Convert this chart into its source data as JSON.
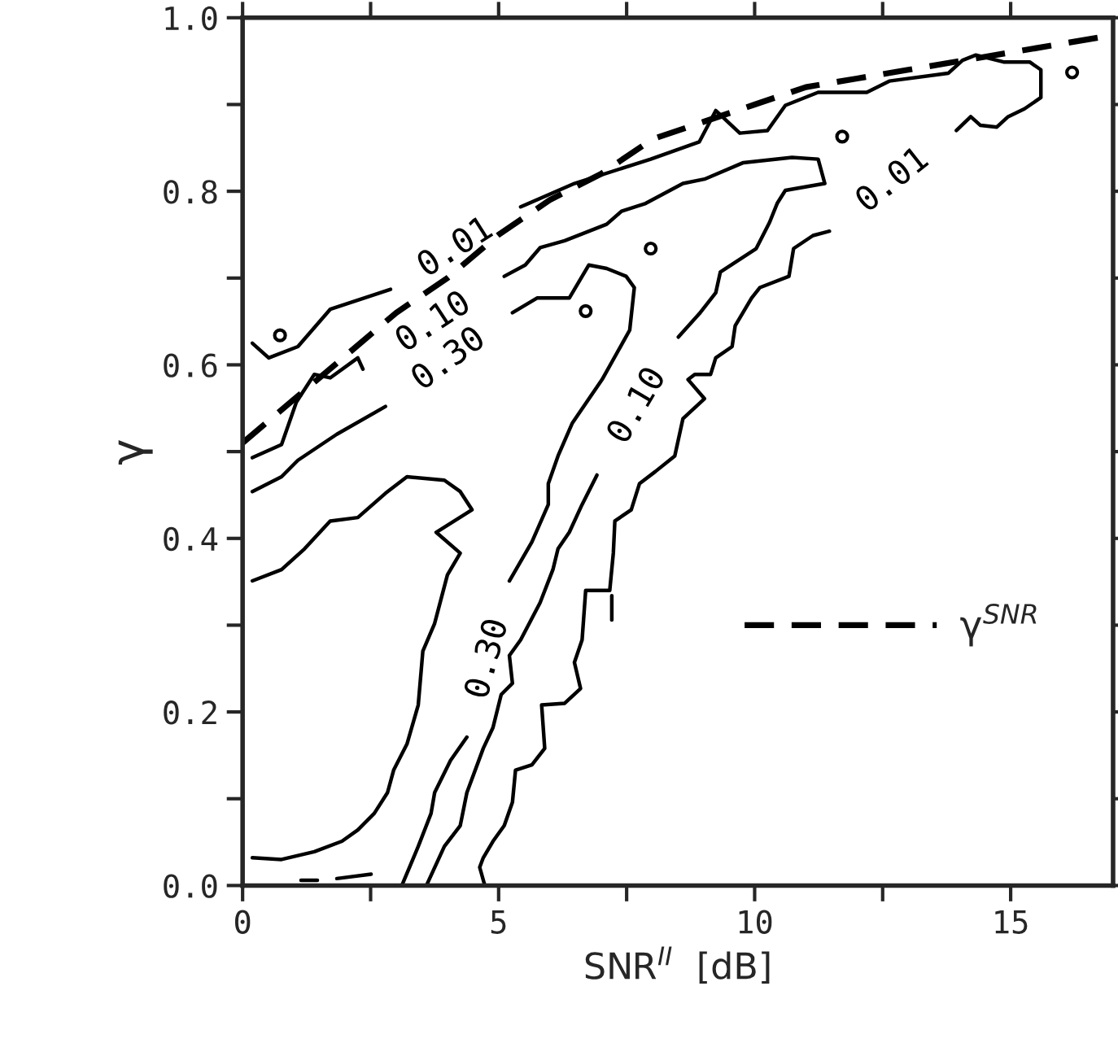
{
  "chart_data": {
    "type": "line",
    "xlabel": "SNR$^{II}$  [dB]",
    "ylabel": "γ",
    "xlim": [
      0,
      17
    ],
    "ylim": [
      0,
      1.0
    ],
    "xticks": [
      0,
      {
        "value": 2.5,
        "label": null
      },
      5,
      {
        "value": 7.5,
        "label": null
      },
      10,
      {
        "value": 12.5,
        "label": null
      },
      15
    ],
    "yticks": [
      {
        "value": 0,
        "label": "0.0"
      },
      {
        "value": 0.1,
        "label": null
      },
      {
        "value": 0.2,
        "label": "0.2"
      },
      {
        "value": 0.3,
        "label": null
      },
      {
        "value": 0.4,
        "label": "0.4"
      },
      {
        "value": 0.5,
        "label": null
      },
      {
        "value": 0.6,
        "label": "0.6"
      },
      {
        "value": 0.7,
        "label": null
      },
      {
        "value": 0.8,
        "label": "0.8"
      },
      {
        "value": 0.9,
        "label": null
      },
      {
        "value": 1.0,
        "label": "1.0"
      }
    ],
    "grid": false,
    "legend": "right",
    "marker": "none",
    "series": [
      {
        "name": "γ$^{SNR}$",
        "color": "#000000",
        "line_style": "dashed",
        "x": [
          0,
          1,
          2,
          3,
          4,
          5,
          6,
          7,
          8,
          9,
          10,
          11,
          12,
          13,
          14,
          15,
          16,
          17
        ],
        "values": [
          0.51,
          0.56,
          0.61,
          0.66,
          0.7,
          0.75,
          0.79,
          0.82,
          0.86,
          0.88,
          0.9,
          0.92,
          0.93,
          0.94,
          0.95,
          0.96,
          0.97,
          0.98
        ]
      },
      {
        "color": "#000000",
        "x": [
          0.19,
          0.51,
          1.08,
          1.71,
          2.89,
          null,
          5.43,
          6.48,
          7.97,
          8.92,
          9.24,
          9.71,
          10.25,
          10.6,
          11.24,
          12.19,
          12.63,
          13.78,
          14.06,
          14.32,
          14.86,
          15.37,
          15.59,
          15.59,
          15.27,
          14.95,
          14.73,
          14.41,
          14.22,
          13.94,
          null,
          11.46,
          11.14,
          10.76,
          10.67,
          10.1,
          9.94,
          9.62,
          9.56,
          9.24,
          9.14,
          8.83,
          8.7,
          9.02,
          8.6,
          8.44,
          8.06,
          7.75,
          7.59,
          7.27,
          7.24,
          7.17,
          6.7,
          6.63,
          6.48,
          6.6,
          6.29,
          5.84,
          5.9,
          5.65,
          5.33,
          5.27,
          5.11,
          4.89,
          4.7,
          4.63,
          4.73
        ],
        "values": [
          0.625,
          0.608,
          0.621,
          0.664,
          0.687,
          null,
          0.782,
          0.809,
          0.837,
          0.857,
          0.893,
          0.867,
          0.87,
          0.899,
          0.914,
          0.914,
          0.927,
          0.936,
          0.951,
          0.957,
          0.949,
          0.949,
          0.94,
          0.908,
          0.895,
          0.886,
          0.874,
          0.876,
          0.886,
          0.87,
          null,
          0.754,
          0.749,
          0.734,
          0.702,
          0.689,
          0.677,
          0.645,
          0.621,
          0.608,
          0.589,
          0.589,
          0.583,
          0.561,
          0.538,
          0.495,
          0.477,
          0.463,
          0.433,
          0.42,
          0.383,
          0.34,
          0.34,
          0.283,
          0.257,
          0.227,
          0.21,
          0.208,
          0.158,
          0.139,
          0.133,
          0.096,
          0.069,
          0.051,
          0.032,
          0.021,
          0.0
        ]
      },
      {
        "color": "#000000",
        "x": [
          0.19,
          0.76,
          1.05,
          1.4,
          1.71,
          2.25,
          2.35,
          null,
          5.11,
          5.52,
          5.81,
          6.29,
          7.11,
          7.4,
          7.87,
          8.6,
          9.02,
          9.78,
          10.73,
          11.24,
          11.37,
          10.6,
          10.44,
          10.29,
          10.03,
          9.33,
          9.24,
          8.92,
          8.51,
          null,
          6.92,
          6.63,
          6.38,
          6.16,
          6.06,
          5.81,
          5.43,
          5.21,
          5.27,
          5.05,
          4.89,
          4.7,
          4.38,
          4.25,
          3.94,
          3.59
        ],
        "values": [
          0.493,
          0.508,
          0.557,
          0.589,
          0.585,
          0.608,
          0.595,
          null,
          0.702,
          0.715,
          0.735,
          0.743,
          0.762,
          0.777,
          0.786,
          0.809,
          0.814,
          0.833,
          0.839,
          0.837,
          0.809,
          0.801,
          0.786,
          0.764,
          0.734,
          0.707,
          0.683,
          0.659,
          0.632,
          null,
          0.473,
          0.439,
          0.407,
          0.388,
          0.364,
          0.326,
          0.283,
          0.265,
          0.233,
          0.22,
          0.182,
          0.158,
          0.107,
          0.069,
          0.045,
          0.0
        ]
      },
      {
        "color": "#000000",
        "x": [
          0.19,
          0.76,
          1.08,
          1.84,
          2.79,
          null,
          5.27,
          5.75,
          6.38,
          6.76,
          7.11,
          7.49,
          7.65,
          7.56,
          7.02,
          6.44,
          6.16,
          5.97,
          5.97,
          5.65,
          5.21,
          null,
          4.38,
          4.06,
          3.75,
          3.68,
          3.43,
          3.11
        ],
        "values": [
          0.454,
          0.471,
          0.49,
          0.52,
          0.552,
          null,
          0.66,
          0.677,
          0.677,
          0.715,
          0.711,
          0.702,
          0.689,
          0.64,
          0.583,
          0.533,
          0.495,
          0.463,
          0.439,
          0.396,
          0.351,
          null,
          0.171,
          0.144,
          0.107,
          0.083,
          0.045,
          0.0
        ]
      },
      {
        "color": "#000000",
        "x": [
          7.21,
          7.21
        ],
        "values": [
          0.334,
          0.306
        ]
      },
      {
        "color": "#000000",
        "x": [
          0.19,
          0.76,
          1.4,
          1.94,
          2.25,
          2.57,
          2.83,
          2.95,
          3.21,
          3.43,
          3.52,
          3.75,
          4.0,
          4.25,
          3.78,
          4.48,
          4.25,
          3.94,
          3.21,
          2.79,
          2.25,
          1.71,
          1.21,
          0.76,
          0.19
        ],
        "values": [
          0.032,
          0.03,
          0.039,
          0.051,
          0.064,
          0.083,
          0.107,
          0.133,
          0.163,
          0.208,
          0.27,
          0.302,
          0.358,
          0.383,
          0.407,
          0.433,
          0.454,
          0.467,
          0.471,
          0.452,
          0.424,
          0.42,
          0.388,
          0.364,
          0.351
        ]
      },
      {
        "color": "#000000",
        "x": [
          1.14,
          1.46
        ],
        "values": [
          0.006,
          0.006
        ]
      },
      {
        "color": "#000000",
        "x": [
          1.84,
          2.51
        ],
        "values": [
          0.008,
          0.013
        ]
      },
      {
        "type": "scatter",
        "marker": "circle",
        "color": "#000000",
        "x": [
          7.97,
          16.2,
          0.73,
          6.7,
          11.71
        ],
        "values": [
          0.734,
          0.937,
          0.634,
          0.662,
          0.863
        ]
      }
    ],
    "annotations": [
      {
        "text": "0.01",
        "x": 2.89,
        "y": 0.687
      },
      {
        "text": "0.10",
        "x": 2.35,
        "y": 0.595
      },
      {
        "text": "0.30",
        "x": 2.79,
        "y": 0.552
      },
      {
        "text": "0.01",
        "x": 13.94,
        "y": 0.87
      },
      {
        "text": "0.10",
        "x": 8.51,
        "y": 0.632
      },
      {
        "text": "0.30",
        "x": 5.21,
        "y": 0.351
      }
    ]
  }
}
